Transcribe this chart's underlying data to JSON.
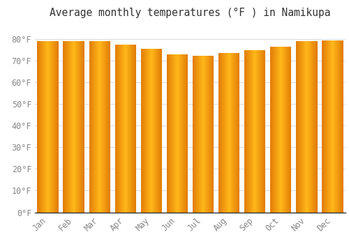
{
  "title": "Average monthly temperatures (°F ) in Namikupa",
  "months": [
    "Jan",
    "Feb",
    "Mar",
    "Apr",
    "May",
    "Jun",
    "Jul",
    "Aug",
    "Sep",
    "Oct",
    "Nov",
    "Dec"
  ],
  "values": [
    79,
    79,
    79,
    77.5,
    75.5,
    73,
    72.5,
    73.5,
    75,
    76.5,
    79,
    79.5
  ],
  "ylim": [
    0,
    88
  ],
  "yticks": [
    0,
    10,
    20,
    30,
    40,
    50,
    60,
    70,
    80
  ],
  "background_color": "#FFFFFF",
  "grid_color": "#DDDDDD",
  "title_fontsize": 10.5,
  "tick_fontsize": 8.5,
  "bar_color_center": "#FFB300",
  "bar_color_edge": "#E07800",
  "bar_color_bottom": "#FFD060",
  "bar_width": 0.82
}
